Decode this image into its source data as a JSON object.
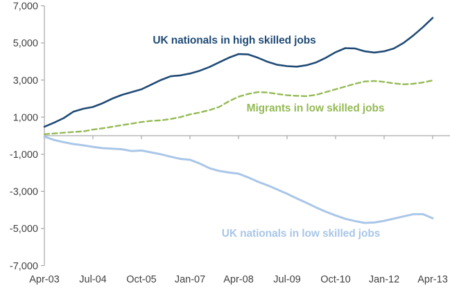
{
  "chart_data": {
    "type": "line",
    "title": "",
    "grid": false,
    "legend": "inline-labels",
    "axis_color": "#a6a6a6",
    "text_color": "#404040",
    "background": "#ffffff",
    "ylim": [
      -7000,
      7000
    ],
    "y_tick_values": [
      7000,
      5000,
      3000,
      1000,
      -1000,
      -3000,
      -5000,
      -7000
    ],
    "y_tick_labels": [
      "7,000",
      "5,000",
      "3,000",
      "1,000",
      "-1,000",
      "-3,000",
      "-5,000",
      "-7,000"
    ],
    "x_tick_every": 5,
    "x_tick_labels": [
      "Apr-03",
      "Jul-04",
      "Oct-05",
      "Jan-07",
      "Apr-08",
      "Jul-09",
      "Oct-10",
      "Jan-12",
      "Apr-13"
    ],
    "x_categories": [
      "Apr-03",
      "Jul-03",
      "Oct-03",
      "Jan-04",
      "Apr-04",
      "Jul-04",
      "Oct-04",
      "Jan-05",
      "Apr-05",
      "Jul-05",
      "Oct-05",
      "Jan-06",
      "Apr-06",
      "Jul-06",
      "Oct-06",
      "Jan-07",
      "Apr-07",
      "Jul-07",
      "Oct-07",
      "Jan-08",
      "Apr-08",
      "Jul-08",
      "Oct-08",
      "Jan-09",
      "Apr-09",
      "Jul-09",
      "Oct-09",
      "Jan-10",
      "Apr-10",
      "Jul-10",
      "Oct-10",
      "Jan-11",
      "Apr-11",
      "Jul-11",
      "Oct-11",
      "Jan-12",
      "Apr-12",
      "Jul-12",
      "Oct-12",
      "Jan-13",
      "Apr-13"
    ],
    "series": [
      {
        "id": "uk-high-skilled",
        "name": "UK nationals in high skilled jobs",
        "label": "UK nationals in high skilled jobs",
        "color": "#1f4a75",
        "style": "solid",
        "width": 2.6,
        "values": [
          480,
          700,
          950,
          1300,
          1450,
          1550,
          1750,
          2000,
          2200,
          2350,
          2500,
          2750,
          3000,
          3200,
          3250,
          3350,
          3500,
          3700,
          3950,
          4200,
          4400,
          4380,
          4200,
          3980,
          3820,
          3750,
          3720,
          3800,
          3950,
          4200,
          4500,
          4720,
          4700,
          4550,
          4480,
          4550,
          4700,
          5000,
          5400,
          5850,
          6350
        ]
      },
      {
        "id": "migrants-low-skilled",
        "name": "Migrants in low skilled jobs",
        "label": "Migrants in low skilled jobs",
        "color": "#94ba55",
        "style": "dashed",
        "width": 2.4,
        "values": [
          80,
          120,
          160,
          200,
          230,
          330,
          400,
          480,
          570,
          650,
          740,
          800,
          830,
          900,
          1000,
          1150,
          1250,
          1380,
          1550,
          1850,
          2100,
          2250,
          2350,
          2330,
          2250,
          2180,
          2150,
          2130,
          2200,
          2350,
          2500,
          2650,
          2800,
          2920,
          2950,
          2900,
          2820,
          2770,
          2800,
          2870,
          2980
        ]
      },
      {
        "id": "uk-low-skilled",
        "name": "UK nationals in low skilled jobs",
        "label": "UK nationals in low skilled jobs",
        "color": "#a9c6e8",
        "style": "solid",
        "width": 3,
        "values": [
          -50,
          -230,
          -350,
          -450,
          -520,
          -600,
          -670,
          -700,
          -730,
          -830,
          -800,
          -900,
          -1000,
          -1130,
          -1250,
          -1300,
          -1500,
          -1750,
          -1900,
          -1980,
          -2050,
          -2250,
          -2480,
          -2680,
          -2900,
          -3130,
          -3380,
          -3620,
          -3870,
          -4100,
          -4300,
          -4480,
          -4600,
          -4700,
          -4680,
          -4590,
          -4470,
          -4350,
          -4230,
          -4230,
          -4450
        ]
      }
    ]
  }
}
